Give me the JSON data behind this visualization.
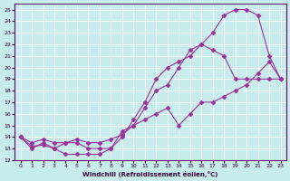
{
  "xlabel": "Windchill (Refroidissement éolien,°C)",
  "bg_color": "#c8ecec",
  "line_color": "#993399",
  "xlim": [
    -0.5,
    23.5
  ],
  "ylim": [
    12,
    25.5
  ],
  "xticks": [
    0,
    1,
    2,
    3,
    4,
    5,
    6,
    7,
    8,
    9,
    10,
    11,
    12,
    13,
    14,
    15,
    16,
    17,
    18,
    19,
    20,
    21,
    22,
    23
  ],
  "yticks": [
    12,
    13,
    14,
    15,
    16,
    17,
    18,
    19,
    20,
    21,
    22,
    23,
    24,
    25
  ],
  "curve1_x": [
    0,
    1,
    2,
    3,
    4,
    5,
    6,
    7,
    8,
    9,
    10,
    11,
    12,
    13,
    14,
    15,
    16,
    17,
    18,
    19,
    20,
    21,
    22,
    23
  ],
  "curve1_y": [
    14,
    13,
    13.5,
    13,
    12.5,
    12.5,
    12.5,
    12.5,
    13,
    14.5,
    15,
    16.5,
    18,
    18.5,
    20,
    21.5,
    22,
    21.5,
    21,
    19,
    19,
    19,
    19,
    19
  ],
  "curve2_x": [
    0,
    1,
    2,
    3,
    4,
    5,
    6,
    7,
    8,
    9,
    10,
    11,
    12,
    13,
    14,
    15,
    16,
    17,
    18,
    19,
    20,
    21,
    22,
    23
  ],
  "curve2_y": [
    14,
    13.2,
    13.3,
    13,
    13.5,
    13.5,
    13,
    13,
    13,
    14,
    15.5,
    17,
    19,
    20,
    20.5,
    21,
    22,
    23,
    24.5,
    25,
    25,
    24.5,
    21,
    19
  ],
  "curve3_x": [
    0,
    1,
    2,
    3,
    4,
    5,
    6,
    7,
    8,
    9,
    10,
    11,
    12,
    13,
    14,
    15,
    16,
    17,
    18,
    19,
    20,
    21,
    22,
    23
  ],
  "curve3_y": [
    14,
    13.5,
    13.8,
    13.5,
    13.5,
    13.8,
    13.5,
    13.5,
    13.8,
    14.2,
    15,
    15.5,
    16,
    16.5,
    15,
    16,
    17,
    17,
    17.5,
    18,
    18.5,
    19.5,
    20.5,
    19
  ]
}
